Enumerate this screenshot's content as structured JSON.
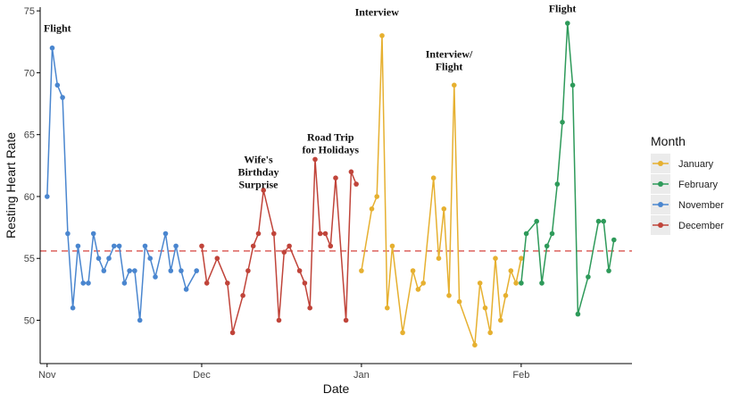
{
  "chart_data": {
    "type": "line",
    "xlabel": "Date",
    "ylabel": "Resting Heart Rate",
    "xlim": [
      "2017-10-31",
      "2018-02-18"
    ],
    "ylim": [
      46.5,
      75.3
    ],
    "x_ticks": [
      {
        "date": "2017-11-01",
        "label": "Nov"
      },
      {
        "date": "2017-12-01",
        "label": "Dec"
      },
      {
        "date": "2018-01-01",
        "label": "Jan"
      },
      {
        "date": "2018-02-01",
        "label": "Feb"
      }
    ],
    "y_ticks": [
      50,
      55,
      60,
      65,
      70,
      75
    ],
    "reference_line": {
      "y": 55.6,
      "style": "dashed",
      "color": "#d9534f"
    },
    "legend": {
      "title": "Month",
      "placement": "right"
    },
    "series": [
      {
        "name": "January",
        "color": "#e6b030",
        "points": [
          [
            "2018-01-01",
            54
          ],
          [
            "2018-01-03",
            59
          ],
          [
            "2018-01-04",
            60
          ],
          [
            "2018-01-05",
            73
          ],
          [
            "2018-01-06",
            51
          ],
          [
            "2018-01-07",
            56
          ],
          [
            "2018-01-09",
            49
          ],
          [
            "2018-01-11",
            54
          ],
          [
            "2018-01-12",
            52.5
          ],
          [
            "2018-01-13",
            53
          ],
          [
            "2018-01-15",
            61.5
          ],
          [
            "2018-01-16",
            55
          ],
          [
            "2018-01-17",
            59
          ],
          [
            "2018-01-18",
            52
          ],
          [
            "2018-01-19",
            69
          ],
          [
            "2018-01-20",
            51.5
          ],
          [
            "2018-01-23",
            48
          ],
          [
            "2018-01-24",
            53
          ],
          [
            "2018-01-25",
            51
          ],
          [
            "2018-01-26",
            49
          ],
          [
            "2018-01-27",
            55
          ],
          [
            "2018-01-28",
            50
          ],
          [
            "2018-01-29",
            52
          ],
          [
            "2018-01-30",
            54
          ],
          [
            "2018-01-31",
            53
          ],
          [
            "2018-02-01",
            55
          ]
        ]
      },
      {
        "name": "February",
        "color": "#2e9a5a",
        "points": [
          [
            "2018-02-01",
            53
          ],
          [
            "2018-02-02",
            57
          ],
          [
            "2018-02-04",
            58
          ],
          [
            "2018-02-05",
            53
          ],
          [
            "2018-02-06",
            56
          ],
          [
            "2018-02-07",
            57
          ],
          [
            "2018-02-08",
            61
          ],
          [
            "2018-02-09",
            66
          ],
          [
            "2018-02-10",
            74
          ],
          [
            "2018-02-11",
            69
          ],
          [
            "2018-02-12",
            50.5
          ],
          [
            "2018-02-14",
            53.5
          ],
          [
            "2018-02-16",
            58
          ],
          [
            "2018-02-17",
            58
          ],
          [
            "2018-02-18",
            54
          ],
          [
            "2018-02-19",
            56.5
          ]
        ]
      },
      {
        "name": "November",
        "color": "#4a86cf",
        "points": [
          [
            "2017-11-01",
            60
          ],
          [
            "2017-11-02",
            72
          ],
          [
            "2017-11-03",
            69
          ],
          [
            "2017-11-04",
            68
          ],
          [
            "2017-11-05",
            57
          ],
          [
            "2017-11-06",
            51
          ],
          [
            "2017-11-07",
            56
          ],
          [
            "2017-11-08",
            53
          ],
          [
            "2017-11-09",
            53
          ],
          [
            "2017-11-10",
            57
          ],
          [
            "2017-11-11",
            55
          ],
          [
            "2017-11-12",
            54
          ],
          [
            "2017-11-13",
            55
          ],
          [
            "2017-11-14",
            56
          ],
          [
            "2017-11-15",
            56
          ],
          [
            "2017-11-16",
            53
          ],
          [
            "2017-11-17",
            54
          ],
          [
            "2017-11-18",
            54
          ],
          [
            "2017-11-19",
            50
          ],
          [
            "2017-11-20",
            56
          ],
          [
            "2017-11-21",
            55
          ],
          [
            "2017-11-22",
            53.5
          ],
          [
            "2017-11-24",
            57
          ],
          [
            "2017-11-25",
            54
          ],
          [
            "2017-11-26",
            56
          ],
          [
            "2017-11-27",
            54
          ],
          [
            "2017-11-28",
            52.5
          ],
          [
            "2017-11-30",
            54
          ]
        ]
      },
      {
        "name": "December",
        "color": "#c0443a",
        "points": [
          [
            "2017-12-01",
            56
          ],
          [
            "2017-12-02",
            53
          ],
          [
            "2017-12-04",
            55
          ],
          [
            "2017-12-06",
            53
          ],
          [
            "2017-12-07",
            49
          ],
          [
            "2017-12-09",
            52
          ],
          [
            "2017-12-10",
            54
          ],
          [
            "2017-12-11",
            56
          ],
          [
            "2017-12-12",
            57
          ],
          [
            "2017-12-13",
            60.5
          ],
          [
            "2017-12-15",
            57
          ],
          [
            "2017-12-16",
            50
          ],
          [
            "2017-12-17",
            55.5
          ],
          [
            "2017-12-18",
            56
          ],
          [
            "2017-12-20",
            54
          ],
          [
            "2017-12-21",
            53
          ],
          [
            "2017-12-22",
            51
          ],
          [
            "2017-12-23",
            63
          ],
          [
            "2017-12-24",
            57
          ],
          [
            "2017-12-25",
            57
          ],
          [
            "2017-12-26",
            56
          ],
          [
            "2017-12-27",
            61.5
          ],
          [
            "2017-12-29",
            50
          ],
          [
            "2017-12-30",
            62
          ],
          [
            "2017-12-31",
            61
          ]
        ]
      }
    ],
    "annotations": [
      {
        "lines": [
          "Flight"
        ],
        "x": "2017-11-03",
        "y": 73.3
      },
      {
        "lines": [
          "Wife's",
          "Birthday",
          "Surprise"
        ],
        "x": "2017-12-12",
        "y": 60.7
      },
      {
        "lines": [
          "Road Trip",
          "for Holidays"
        ],
        "x": "2017-12-26",
        "y": 63.5
      },
      {
        "lines": [
          "Interview"
        ],
        "x": "2018-01-04",
        "y": 74.6
      },
      {
        "lines": [
          "Interview/",
          "Flight"
        ],
        "x": "2018-01-18",
        "y": 70.2
      },
      {
        "lines": [
          "Flight"
        ],
        "x": "2018-02-09",
        "y": 74.9
      }
    ]
  }
}
